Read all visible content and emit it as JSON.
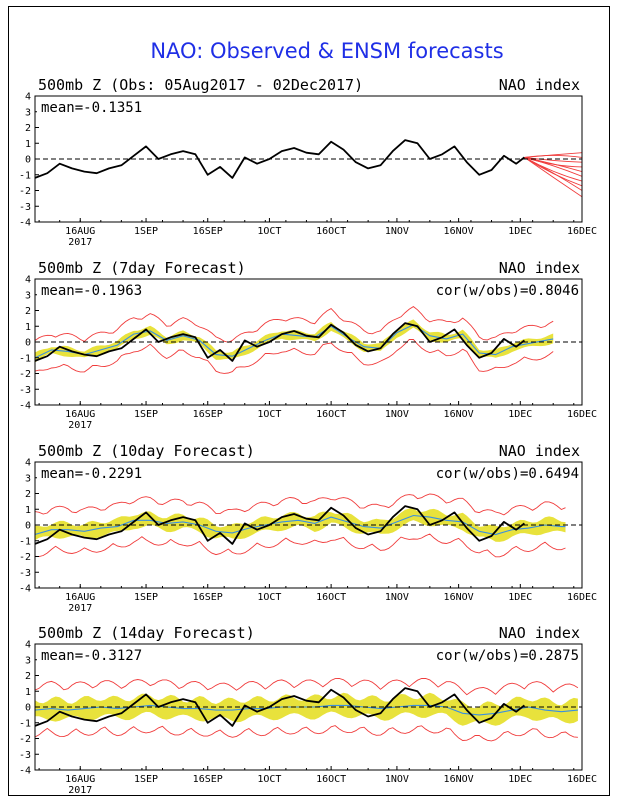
{
  "figure_title": "NAO: Observed & ENSM forecasts",
  "colors": {
    "title": "#1f2fe6",
    "observed": "#000000",
    "ens_mean": "#3a8fe0",
    "spread": "#e8e23c",
    "members": "#f03c3c",
    "zero_line": "#000000"
  },
  "chart_data": [
    {
      "type": "line",
      "title": "500mb Z (Obs: 05Aug2017 - 02Dec2017)",
      "right_label": "NAO index",
      "mean_label": "mean=-0.1351",
      "cor_label": "",
      "ylim": [
        -4,
        4
      ],
      "yticks": [
        "4",
        "3",
        "2",
        "1",
        "0",
        "-1",
        "-2",
        "-3",
        "-4"
      ],
      "xticks": [
        {
          "label": "16AUG",
          "sub": "2017",
          "day": 11
        },
        {
          "label": "1SEP",
          "sub": "",
          "day": 27
        },
        {
          "label": "16SEP",
          "sub": "",
          "day": 42
        },
        {
          "label": "1OCT",
          "sub": "",
          "day": 57
        },
        {
          "label": "16OCT",
          "sub": "",
          "day": 72
        },
        {
          "label": "1NOV",
          "sub": "",
          "day": 88
        },
        {
          "label": "16NOV",
          "sub": "",
          "day": 103
        },
        {
          "label": "1DEC",
          "sub": "",
          "day": 118
        },
        {
          "label": "16DEC",
          "sub": "",
          "day": 133
        }
      ],
      "observed": {
        "x": [
          0,
          3,
          6,
          9,
          12,
          15,
          18,
          21,
          24,
          27,
          30,
          33,
          36,
          39,
          42,
          45,
          48,
          51,
          54,
          57,
          60,
          63,
          66,
          69,
          72,
          75,
          78,
          81,
          84,
          87,
          90,
          93,
          96,
          99,
          102,
          105,
          108,
          111,
          114,
          117,
          119
        ],
        "y": [
          -1.2,
          -0.9,
          -0.3,
          -0.6,
          -0.8,
          -0.9,
          -0.6,
          -0.4,
          0.2,
          0.8,
          0.0,
          0.3,
          0.5,
          0.3,
          -1.0,
          -0.5,
          -1.2,
          0.1,
          -0.3,
          0.0,
          0.5,
          0.7,
          0.4,
          0.3,
          1.1,
          0.6,
          -0.2,
          -0.6,
          -0.4,
          0.5,
          1.2,
          1.0,
          0.0,
          0.3,
          0.8,
          -0.2,
          -1.0,
          -0.7,
          0.2,
          -0.3,
          0.1
        ]
      },
      "members_start": [
        119,
        0.1
      ],
      "members_end_x": 133,
      "members_end": [
        0.4,
        0.1,
        -0.2,
        -0.5,
        -0.8,
        -1.1,
        -1.4,
        -1.7,
        -2.0,
        -2.4
      ]
    },
    {
      "type": "line",
      "title": "500mb Z (7day Forecast)",
      "right_label": "NAO index",
      "mean_label": "mean=-0.1963",
      "cor_label": "cor(w/obs)=0.8046",
      "ylim": [
        -4,
        4
      ],
      "yticks": [
        "4",
        "3",
        "2",
        "1",
        "0",
        "-1",
        "-2",
        "-3",
        "-4"
      ],
      "xticks": [
        {
          "label": "16AUG",
          "sub": "2017",
          "day": 11
        },
        {
          "label": "1SEP",
          "sub": "",
          "day": 27
        },
        {
          "label": "16SEP",
          "sub": "",
          "day": 42
        },
        {
          "label": "1OCT",
          "sub": "",
          "day": 57
        },
        {
          "label": "16OCT",
          "sub": "",
          "day": 72
        },
        {
          "label": "1NOV",
          "sub": "",
          "day": 88
        },
        {
          "label": "16NOV",
          "sub": "",
          "day": 103
        },
        {
          "label": "1DEC",
          "sub": "",
          "day": 118
        },
        {
          "label": "16DEC",
          "sub": "",
          "day": 133
        }
      ],
      "observed": {
        "x": [
          0,
          3,
          6,
          9,
          12,
          15,
          18,
          21,
          24,
          27,
          30,
          33,
          36,
          39,
          42,
          45,
          48,
          51,
          54,
          57,
          60,
          63,
          66,
          69,
          72,
          75,
          78,
          81,
          84,
          87,
          90,
          93,
          96,
          99,
          102,
          105,
          108,
          111,
          114,
          117,
          119
        ],
        "y": [
          -1.2,
          -0.9,
          -0.3,
          -0.6,
          -0.8,
          -0.9,
          -0.6,
          -0.4,
          0.2,
          0.8,
          0.0,
          0.3,
          0.5,
          0.3,
          -1.0,
          -0.5,
          -1.2,
          0.1,
          -0.3,
          0.0,
          0.5,
          0.7,
          0.4,
          0.3,
          1.1,
          0.6,
          -0.2,
          -0.6,
          -0.4,
          0.5,
          1.2,
          1.0,
          0.0,
          0.3,
          0.8,
          -0.2,
          -1.0,
          -0.7,
          0.2,
          -0.3,
          0.1
        ]
      },
      "ens_mean": {
        "x": [
          0,
          4,
          8,
          12,
          16,
          20,
          24,
          28,
          32,
          36,
          40,
          44,
          48,
          52,
          56,
          60,
          64,
          68,
          72,
          76,
          80,
          84,
          88,
          92,
          96,
          100,
          104,
          108,
          112,
          116,
          120,
          124,
          126
        ],
        "y": [
          -1.0,
          -0.5,
          -0.6,
          -0.8,
          -0.5,
          -0.2,
          0.5,
          0.7,
          0.1,
          0.4,
          0.1,
          -0.8,
          -0.9,
          -0.4,
          0.1,
          0.5,
          0.4,
          0.3,
          1.0,
          0.3,
          -0.3,
          -0.4,
          0.6,
          1.1,
          0.4,
          0.2,
          0.5,
          -0.7,
          -0.8,
          -0.3,
          -0.1,
          0.1,
          0.2
        ]
      },
      "spread": 0.3,
      "envelope": 1.0,
      "end_day": 126
    },
    {
      "type": "line",
      "title": "500mb Z (10day Forecast)",
      "right_label": "NAO index",
      "mean_label": "mean=-0.2291",
      "cor_label": "cor(w/obs)=0.6494",
      "ylim": [
        -4,
        4
      ],
      "yticks": [
        "4",
        "3",
        "2",
        "1",
        "0",
        "-1",
        "-2",
        "-3",
        "-4"
      ],
      "xticks": [
        {
          "label": "16AUG",
          "sub": "2017",
          "day": 11
        },
        {
          "label": "1SEP",
          "sub": "",
          "day": 27
        },
        {
          "label": "16SEP",
          "sub": "",
          "day": 42
        },
        {
          "label": "1OCT",
          "sub": "",
          "day": 57
        },
        {
          "label": "16OCT",
          "sub": "",
          "day": 72
        },
        {
          "label": "1NOV",
          "sub": "",
          "day": 88
        },
        {
          "label": "16NOV",
          "sub": "",
          "day": 103
        },
        {
          "label": "1DEC",
          "sub": "",
          "day": 118
        },
        {
          "label": "16DEC",
          "sub": "",
          "day": 133
        }
      ],
      "observed": {
        "x": [
          0,
          3,
          6,
          9,
          12,
          15,
          18,
          21,
          24,
          27,
          30,
          33,
          36,
          39,
          42,
          45,
          48,
          51,
          54,
          57,
          60,
          63,
          66,
          69,
          72,
          75,
          78,
          81,
          84,
          87,
          90,
          93,
          96,
          99,
          102,
          105,
          108,
          111,
          114,
          117,
          119
        ],
        "y": [
          -1.2,
          -0.9,
          -0.3,
          -0.6,
          -0.8,
          -0.9,
          -0.6,
          -0.4,
          0.2,
          0.8,
          0.0,
          0.3,
          0.5,
          0.3,
          -1.0,
          -0.5,
          -1.2,
          0.1,
          -0.3,
          0.0,
          0.5,
          0.7,
          0.4,
          0.3,
          1.1,
          0.6,
          -0.2,
          -0.6,
          -0.4,
          0.5,
          1.2,
          1.0,
          0.0,
          0.3,
          0.8,
          -0.2,
          -1.0,
          -0.7,
          0.2,
          -0.3,
          0.1
        ]
      },
      "ens_mean": {
        "x": [
          0,
          4,
          8,
          12,
          16,
          20,
          24,
          28,
          32,
          36,
          40,
          44,
          48,
          52,
          56,
          60,
          64,
          68,
          72,
          76,
          80,
          84,
          88,
          92,
          96,
          100,
          104,
          108,
          112,
          116,
          120,
          124,
          128,
          129
        ],
        "y": [
          -0.6,
          -0.3,
          -0.3,
          -0.4,
          -0.2,
          -0.1,
          0.3,
          0.3,
          0.1,
          0.2,
          0.0,
          -0.4,
          -0.5,
          -0.2,
          0.0,
          0.2,
          0.3,
          0.1,
          0.5,
          0.2,
          -0.1,
          -0.2,
          0.2,
          0.6,
          0.5,
          0.3,
          0.2,
          -0.4,
          -0.6,
          -0.3,
          -0.2,
          0.0,
          -0.1,
          -0.1
        ]
      },
      "spread": 0.5,
      "envelope": 1.3,
      "end_day": 129
    },
    {
      "type": "line",
      "title": "500mb Z (14day Forecast)",
      "right_label": "NAO index",
      "mean_label": "mean=-0.3127",
      "cor_label": "cor(w/obs)=0.2875",
      "ylim": [
        -4,
        4
      ],
      "yticks": [
        "4",
        "3",
        "2",
        "1",
        "0",
        "-1",
        "-2",
        "-3",
        "-4"
      ],
      "xticks": [
        {
          "label": "16AUG",
          "sub": "2017",
          "day": 11
        },
        {
          "label": "1SEP",
          "sub": "",
          "day": 27
        },
        {
          "label": "16SEP",
          "sub": "",
          "day": 42
        },
        {
          "label": "1OCT",
          "sub": "",
          "day": 57
        },
        {
          "label": "16OCT",
          "sub": "",
          "day": 72
        },
        {
          "label": "1NOV",
          "sub": "",
          "day": 88
        },
        {
          "label": "16NOV",
          "sub": "",
          "day": 103
        },
        {
          "label": "1DEC",
          "sub": "",
          "day": 118
        },
        {
          "label": "16DEC",
          "sub": "",
          "day": 133
        }
      ],
      "observed": {
        "x": [
          0,
          3,
          6,
          9,
          12,
          15,
          18,
          21,
          24,
          27,
          30,
          33,
          36,
          39,
          42,
          45,
          48,
          51,
          54,
          57,
          60,
          63,
          66,
          69,
          72,
          75,
          78,
          81,
          84,
          87,
          90,
          93,
          96,
          99,
          102,
          105,
          108,
          111,
          114,
          117,
          119
        ],
        "y": [
          -1.2,
          -0.9,
          -0.3,
          -0.6,
          -0.8,
          -0.9,
          -0.6,
          -0.4,
          0.2,
          0.8,
          0.0,
          0.3,
          0.5,
          0.3,
          -1.0,
          -0.5,
          -1.2,
          0.1,
          -0.3,
          0.0,
          0.5,
          0.7,
          0.4,
          0.3,
          1.1,
          0.6,
          -0.2,
          -0.6,
          -0.4,
          0.5,
          1.2,
          1.0,
          0.0,
          0.3,
          0.8,
          -0.2,
          -1.0,
          -0.7,
          0.2,
          -0.3,
          0.1
        ]
      },
      "ens_mean": {
        "x": [
          0,
          4,
          8,
          12,
          16,
          20,
          24,
          28,
          32,
          36,
          40,
          44,
          48,
          52,
          56,
          60,
          64,
          68,
          72,
          76,
          80,
          84,
          88,
          92,
          96,
          100,
          104,
          108,
          112,
          116,
          120,
          124,
          128,
          132
        ],
        "y": [
          -0.2,
          -0.1,
          -0.2,
          -0.1,
          0.0,
          -0.1,
          0.0,
          0.1,
          0.0,
          -0.1,
          -0.1,
          -0.2,
          -0.2,
          -0.1,
          -0.1,
          0.0,
          0.0,
          0.0,
          0.1,
          0.1,
          0.0,
          -0.1,
          0.0,
          0.1,
          0.1,
          0.0,
          -0.4,
          -0.5,
          -0.4,
          -0.2,
          0.0,
          -0.2,
          -0.3,
          -0.2
        ]
      },
      "spread": 0.7,
      "envelope": 1.5,
      "end_day": 132
    }
  ]
}
